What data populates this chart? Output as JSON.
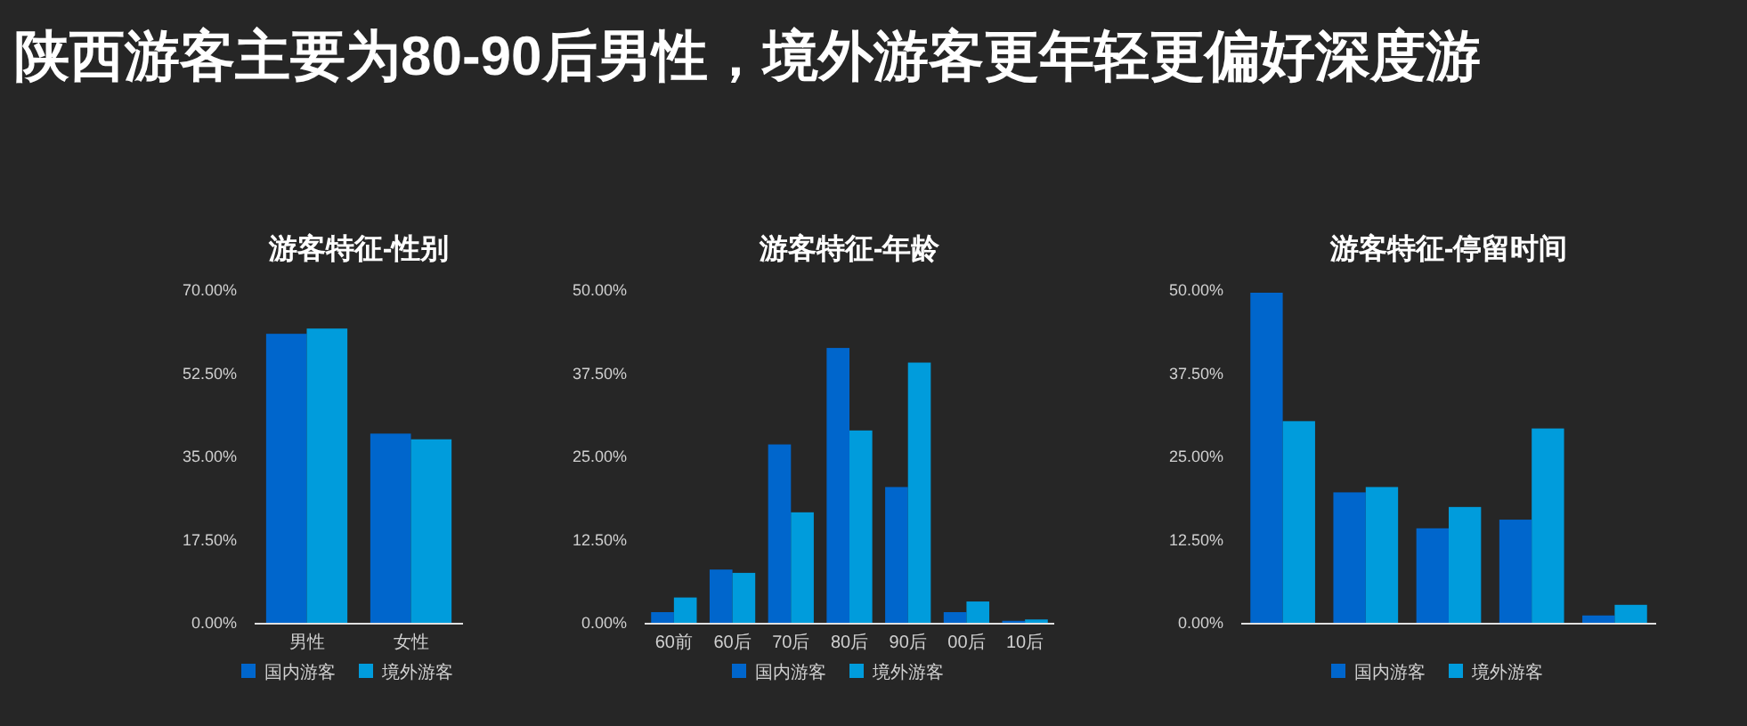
{
  "chart_data": [
    {
      "type": "other",
      "title": "陕西游客主要为80-90后男性，境外游客更年轻更偏好深度游"
    },
    {
      "type": "bar",
      "title": "游客特征-性别",
      "categories": [
        "男性",
        "女性"
      ],
      "series": [
        {
          "name": "国内游客",
          "color": "#0066cc",
          "values": [
            60.8,
            39.8
          ]
        },
        {
          "name": "境外游客",
          "color": "#009cdc",
          "values": [
            61.9,
            38.6
          ]
        }
      ],
      "ylim": [
        0,
        70
      ],
      "yticks": [
        {
          "value": 0,
          "label": "0.00%"
        },
        {
          "value": 17.5,
          "label": "17.50%"
        },
        {
          "value": 35,
          "label": "35.00%"
        },
        {
          "value": 52.5,
          "label": "52.50%"
        },
        {
          "value": 70,
          "label": "70.00%"
        }
      ],
      "legend": "bottom",
      "grid": false
    },
    {
      "type": "bar",
      "title": "游客特征-年龄",
      "categories": [
        "60前",
        "60后",
        "70后",
        "80后",
        "90后",
        "00后",
        "10后"
      ],
      "series": [
        {
          "name": "国内游客",
          "color": "#0066cc",
          "values": [
            1.6,
            8.0,
            26.8,
            41.3,
            20.4,
            1.6,
            0.3
          ]
        },
        {
          "name": "境外游客",
          "color": "#009cdc",
          "values": [
            3.8,
            7.5,
            16.6,
            28.9,
            39.1,
            3.2,
            0.5
          ]
        }
      ],
      "ylim": [
        0,
        50
      ],
      "yticks": [
        {
          "value": 0,
          "label": "0.00%"
        },
        {
          "value": 12.5,
          "label": "12.50%"
        },
        {
          "value": 25,
          "label": "25.00%"
        },
        {
          "value": 37.5,
          "label": "37.50%"
        },
        {
          "value": 50,
          "label": "50.00%"
        }
      ],
      "legend": "bottom",
      "grid": false
    },
    {
      "type": "bar",
      "title": "游客特征-停留时间",
      "categories": [
        null,
        null,
        null,
        null,
        null
      ],
      "series": [
        {
          "name": "国内游客",
          "color": "#0066cc",
          "values": [
            49.6,
            19.6,
            14.2,
            15.5,
            1.1
          ]
        },
        {
          "name": "境外游客",
          "color": "#009cdc",
          "values": [
            30.3,
            20.4,
            17.4,
            29.2,
            2.7
          ]
        }
      ],
      "ylim": [
        0,
        50
      ],
      "yticks": [
        {
          "value": 0,
          "label": "0.00%"
        },
        {
          "value": 12.5,
          "label": "12.50%"
        },
        {
          "value": 25,
          "label": "25.00%"
        },
        {
          "value": 37.5,
          "label": "37.50%"
        },
        {
          "value": 50,
          "label": "50.00%"
        }
      ],
      "legend": "bottom",
      "grid": false
    }
  ]
}
